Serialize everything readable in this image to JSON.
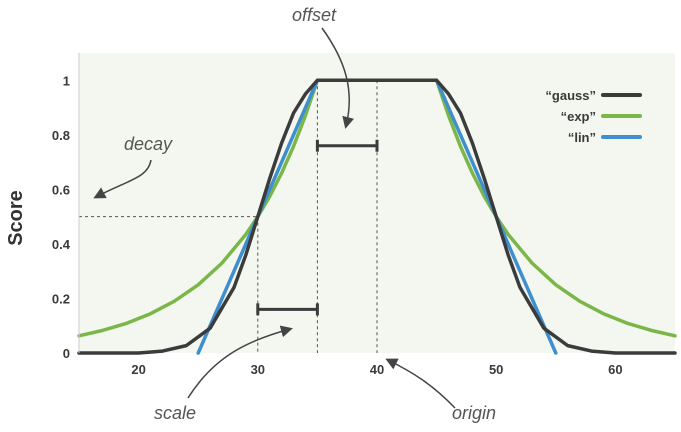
{
  "chart_data": {
    "type": "line",
    "title": "",
    "xlabel": "",
    "ylabel": "Score",
    "xlim": [
      15,
      65
    ],
    "ylim": [
      0,
      1.1
    ],
    "x_ticks": [
      20,
      30,
      40,
      50,
      60
    ],
    "y_ticks": [
      0,
      0.2,
      0.4,
      0.6,
      0.8,
      1
    ],
    "y_tick_labels": [
      "0",
      "0.2",
      "0.4",
      "0.6",
      "0.8",
      "1"
    ],
    "legend_position": "top-right",
    "background": "#f4f7f0",
    "series": [
      {
        "name": "“gauss”",
        "color": "#3b3b3b",
        "x": [
          15,
          20,
          22,
          24,
          26,
          28,
          29,
          30,
          31,
          32,
          33,
          34,
          35,
          45,
          46,
          47,
          48,
          49,
          50,
          51,
          52,
          54,
          56,
          58,
          60,
          65
        ],
        "y": [
          0.0,
          0.0,
          0.007,
          0.027,
          0.091,
          0.24,
          0.36,
          0.5,
          0.64,
          0.77,
          0.88,
          0.95,
          1.0,
          1.0,
          0.95,
          0.88,
          0.77,
          0.64,
          0.5,
          0.36,
          0.24,
          0.091,
          0.027,
          0.007,
          0.0,
          0.0
        ]
      },
      {
        "name": "“exp”",
        "color": "#7ab648",
        "x": [
          15,
          17,
          19,
          21,
          23,
          25,
          27,
          29,
          30,
          31,
          32,
          33,
          34,
          35,
          45,
          46,
          47,
          48,
          49,
          50,
          51,
          53,
          55,
          57,
          59,
          61,
          63,
          65
        ],
        "y": [
          0.063,
          0.083,
          0.109,
          0.144,
          0.19,
          0.25,
          0.33,
          0.435,
          0.5,
          0.574,
          0.66,
          0.758,
          0.871,
          1.0,
          1.0,
          0.871,
          0.758,
          0.66,
          0.574,
          0.5,
          0.435,
          0.33,
          0.25,
          0.19,
          0.144,
          0.109,
          0.083,
          0.063
        ]
      },
      {
        "name": "“lin”",
        "color": "#3f8fcf",
        "x": [
          25,
          35,
          45,
          55
        ],
        "y": [
          0,
          1,
          1,
          0
        ]
      }
    ],
    "annotations": {
      "offset": "offset",
      "decay": "decay",
      "scale": "scale",
      "origin": "origin"
    },
    "reference_points": {
      "origin_x": 40,
      "offset_start_x": 35,
      "scale_start_x": 30,
      "decay_y": 0.5
    }
  }
}
